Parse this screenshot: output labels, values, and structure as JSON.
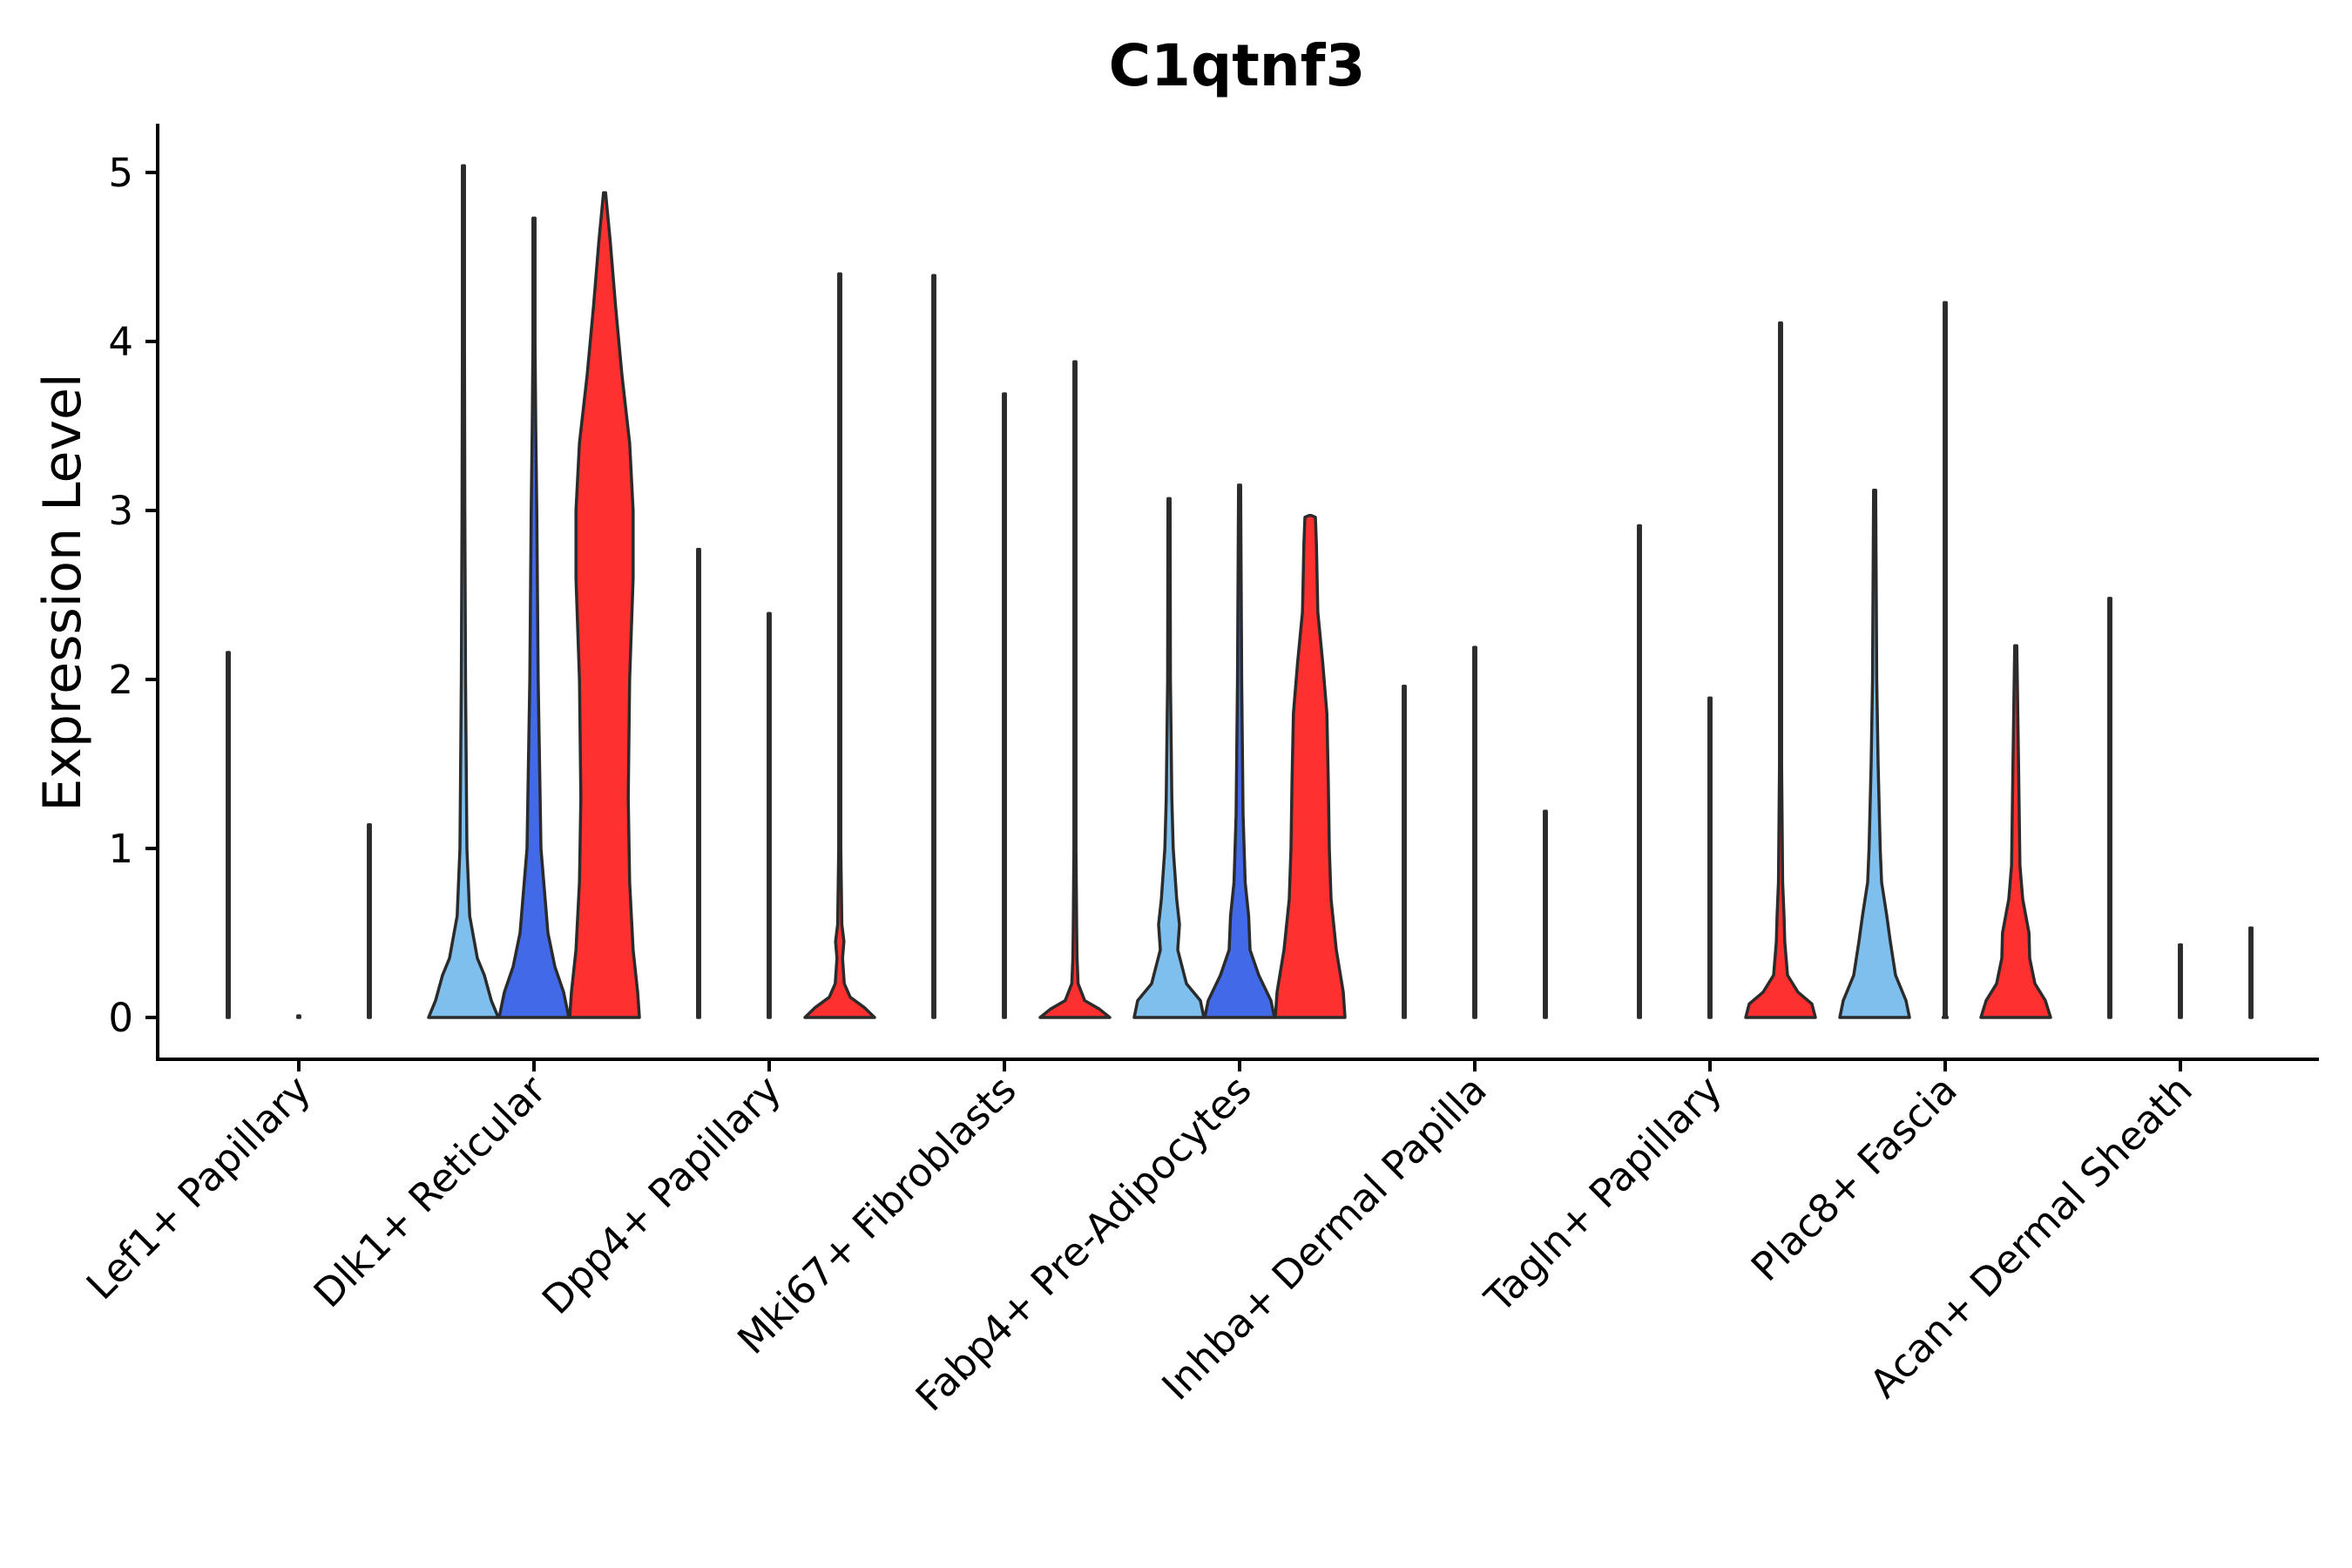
{
  "chart_data": {
    "type": "violin",
    "title": "C1qtnf3",
    "xlabel": "",
    "ylabel": "Expression Level",
    "ylim": [
      -0.25,
      5.3
    ],
    "yticks": [
      0,
      1,
      2,
      3,
      4,
      5
    ],
    "grid": false,
    "legend": "none",
    "series_colors": {
      "light": "#7fbfee",
      "mid": "#4169e8",
      "red": "#ff3030"
    },
    "categories": [
      "Lef1+ Papillary",
      "Dlk1+ Reticular",
      "Dpp4+ Papillary",
      "Mki67+ Fibroblasts",
      "Fabp4+ Pre-Adipocytes",
      "Inhba+ Dermal Papilla",
      "Tagln+ Papillary",
      "Plac8+ Fascia",
      "Acan+ Dermal Sheath"
    ],
    "violins": [
      [
        {
          "color": "light",
          "profile": [
            [
              0,
              0.02
            ],
            [
              0.01,
              0
            ],
            [
              2.16,
              0
            ]
          ]
        },
        {
          "color": "mid",
          "profile": [
            [
              0,
              0.01
            ],
            [
              0.01,
              0
            ]
          ]
        },
        {
          "color": "red",
          "profile": [
            [
              0,
              0.01
            ],
            [
              0.01,
              0
            ],
            [
              1.14,
              0
            ]
          ]
        }
      ],
      [
        {
          "color": "light",
          "profile": [
            [
              0,
              1
            ],
            [
              0.1,
              0.8
            ],
            [
              0.25,
              0.6
            ],
            [
              0.35,
              0.4
            ],
            [
              0.6,
              0.18
            ],
            [
              1.0,
              0.1
            ],
            [
              2.0,
              0.06
            ],
            [
              3.0,
              0.04
            ],
            [
              4.0,
              0.02
            ],
            [
              5.04,
              0
            ]
          ]
        },
        {
          "color": "mid",
          "profile": [
            [
              0,
              1
            ],
            [
              0.15,
              0.85
            ],
            [
              0.3,
              0.6
            ],
            [
              0.5,
              0.4
            ],
            [
              1.0,
              0.2
            ],
            [
              2.0,
              0.12
            ],
            [
              2.5,
              0.1
            ],
            [
              3.0,
              0.08
            ],
            [
              3.5,
              0.05
            ],
            [
              4.0,
              0.03
            ],
            [
              4.73,
              0
            ]
          ]
        },
        {
          "color": "red",
          "profile": [
            [
              0,
              1
            ],
            [
              0.15,
              0.95
            ],
            [
              0.4,
              0.82
            ],
            [
              0.8,
              0.72
            ],
            [
              1.3,
              0.68
            ],
            [
              2.0,
              0.72
            ],
            [
              2.6,
              0.82
            ],
            [
              3.0,
              0.82
            ],
            [
              3.4,
              0.72
            ],
            [
              3.8,
              0.5
            ],
            [
              4.2,
              0.32
            ],
            [
              4.6,
              0.16
            ],
            [
              4.88,
              0
            ]
          ]
        }
      ],
      [
        {
          "color": "light",
          "profile": [
            [
              0,
              0.02
            ],
            [
              0.01,
              0
            ],
            [
              2.77,
              0
            ]
          ]
        },
        {
          "color": "mid",
          "profile": [
            [
              0,
              0.01
            ],
            [
              0.01,
              0
            ],
            [
              2.39,
              0
            ]
          ]
        },
        {
          "color": "red",
          "profile": [
            [
              0,
              1
            ],
            [
              0.06,
              0.7
            ],
            [
              0.12,
              0.3
            ],
            [
              0.2,
              0.13
            ],
            [
              0.35,
              0.08
            ],
            [
              0.45,
              0.12
            ],
            [
              0.55,
              0.06
            ],
            [
              1.0,
              0.03
            ],
            [
              2.0,
              0.02
            ],
            [
              4.4,
              0
            ]
          ]
        }
      ],
      [
        {
          "color": "light",
          "profile": [
            [
              0,
              0.02
            ],
            [
              0.01,
              0
            ],
            [
              4.39,
              0
            ]
          ]
        },
        {
          "color": "mid",
          "profile": [
            [
              0,
              0.01
            ],
            [
              0.01,
              0
            ],
            [
              3.69,
              0
            ]
          ]
        },
        {
          "color": "red",
          "profile": [
            [
              0,
              1
            ],
            [
              0.05,
              0.7
            ],
            [
              0.1,
              0.28
            ],
            [
              0.2,
              0.09
            ],
            [
              0.35,
              0.06
            ],
            [
              0.5,
              0.05
            ],
            [
              1.0,
              0.03
            ],
            [
              2.0,
              0.02
            ],
            [
              3.88,
              0
            ]
          ]
        }
      ],
      [
        {
          "color": "light",
          "profile": [
            [
              0,
              1
            ],
            [
              0.1,
              0.9
            ],
            [
              0.2,
              0.5
            ],
            [
              0.4,
              0.25
            ],
            [
              0.55,
              0.3
            ],
            [
              0.7,
              0.22
            ],
            [
              1.0,
              0.12
            ],
            [
              1.3,
              0.08
            ],
            [
              2.0,
              0.04
            ],
            [
              3.07,
              0
            ]
          ]
        },
        {
          "color": "mid",
          "profile": [
            [
              0,
              1
            ],
            [
              0.1,
              0.9
            ],
            [
              0.25,
              0.55
            ],
            [
              0.4,
              0.3
            ],
            [
              0.6,
              0.26
            ],
            [
              0.8,
              0.16
            ],
            [
              1.2,
              0.1
            ],
            [
              2.0,
              0.06
            ],
            [
              3.15,
              0
            ]
          ]
        },
        {
          "color": "red",
          "profile": [
            [
              0,
              1
            ],
            [
              0.15,
              0.95
            ],
            [
              0.4,
              0.75
            ],
            [
              0.7,
              0.6
            ],
            [
              1.0,
              0.55
            ],
            [
              1.4,
              0.52
            ],
            [
              1.8,
              0.48
            ],
            [
              2.1,
              0.36
            ],
            [
              2.4,
              0.22
            ],
            [
              2.8,
              0.18
            ],
            [
              2.96,
              0.15
            ],
            [
              2.97,
              0
            ]
          ]
        }
      ],
      [
        {
          "color": "light",
          "profile": [
            [
              0,
              0.02
            ],
            [
              0.01,
              0
            ],
            [
              1.96,
              0
            ]
          ]
        },
        {
          "color": "mid",
          "profile": [
            [
              0,
              0.01
            ],
            [
              0.01,
              0
            ],
            [
              2.19,
              0
            ]
          ]
        },
        {
          "color": "red",
          "profile": [
            [
              0,
              0.01
            ],
            [
              0.01,
              0
            ],
            [
              1.22,
              0
            ]
          ]
        }
      ],
      [
        {
          "color": "light",
          "profile": [
            [
              0,
              0.02
            ],
            [
              0.01,
              0
            ],
            [
              2.91,
              0
            ]
          ]
        },
        {
          "color": "mid",
          "profile": [
            [
              0,
              0.01
            ],
            [
              0.01,
              0
            ],
            [
              1.89,
              0
            ]
          ]
        },
        {
          "color": "red",
          "profile": [
            [
              0,
              1
            ],
            [
              0.08,
              0.9
            ],
            [
              0.15,
              0.5
            ],
            [
              0.25,
              0.2
            ],
            [
              0.45,
              0.12
            ],
            [
              0.6,
              0.1
            ],
            [
              0.8,
              0.06
            ],
            [
              1.5,
              0.03
            ],
            [
              3.0,
              0.02
            ],
            [
              4.11,
              0
            ]
          ]
        }
      ],
      [
        {
          "color": "light",
          "profile": [
            [
              0,
              1
            ],
            [
              0.1,
              0.9
            ],
            [
              0.25,
              0.6
            ],
            [
              0.45,
              0.45
            ],
            [
              0.6,
              0.35
            ],
            [
              0.8,
              0.2
            ],
            [
              1.0,
              0.16
            ],
            [
              1.5,
              0.1
            ],
            [
              2.0,
              0.06
            ],
            [
              3.12,
              0
            ]
          ]
        },
        {
          "color": "mid",
          "profile": [
            [
              0,
              0.06
            ],
            [
              0.01,
              0.02
            ],
            [
              4.23,
              0
            ]
          ]
        },
        {
          "color": "red",
          "profile": [
            [
              0,
              1
            ],
            [
              0.1,
              0.85
            ],
            [
              0.2,
              0.55
            ],
            [
              0.35,
              0.4
            ],
            [
              0.5,
              0.38
            ],
            [
              0.7,
              0.2
            ],
            [
              0.9,
              0.12
            ],
            [
              1.5,
              0.08
            ],
            [
              2.2,
              0
            ]
          ]
        }
      ],
      [
        {
          "color": "light",
          "profile": [
            [
              0,
              0.02
            ],
            [
              0.01,
              0
            ],
            [
              2.48,
              0
            ]
          ]
        },
        {
          "color": "mid",
          "profile": [
            [
              0,
              0.01
            ],
            [
              0.01,
              0
            ],
            [
              0.43,
              0
            ]
          ]
        },
        {
          "color": "red",
          "profile": [
            [
              0,
              0.01
            ],
            [
              0.01,
              0
            ],
            [
              0.53,
              0
            ]
          ]
        }
      ]
    ]
  }
}
